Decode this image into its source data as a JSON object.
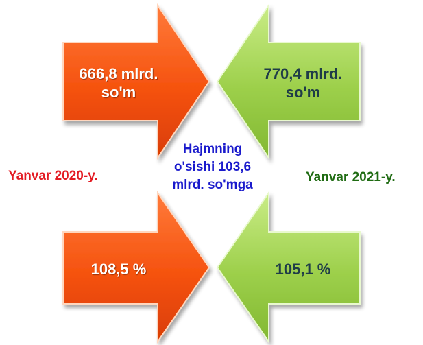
{
  "colors": {
    "left_arrow": "#f5520e",
    "right_arrow": "#9ccf4a",
    "left_label": "#e31b23",
    "right_label": "#1f6b12",
    "center_note": "#1a1acc"
  },
  "top_left_arrow": {
    "line1": "666,8 mlrd.",
    "line2": "so'm"
  },
  "top_right_arrow": {
    "line1": "770,4 mlrd.",
    "line2": "so'm"
  },
  "bottom_left_arrow": {
    "text": "108,5 %"
  },
  "bottom_right_arrow": {
    "text": "105,1 %"
  },
  "left_label": "Yanvar 2020-y.",
  "right_label": "Yanvar 2021-y.",
  "center_note": {
    "line1": "Hajmning",
    "line2": "o'sishi 103,6",
    "line3": "mlrd.  so'mga"
  }
}
